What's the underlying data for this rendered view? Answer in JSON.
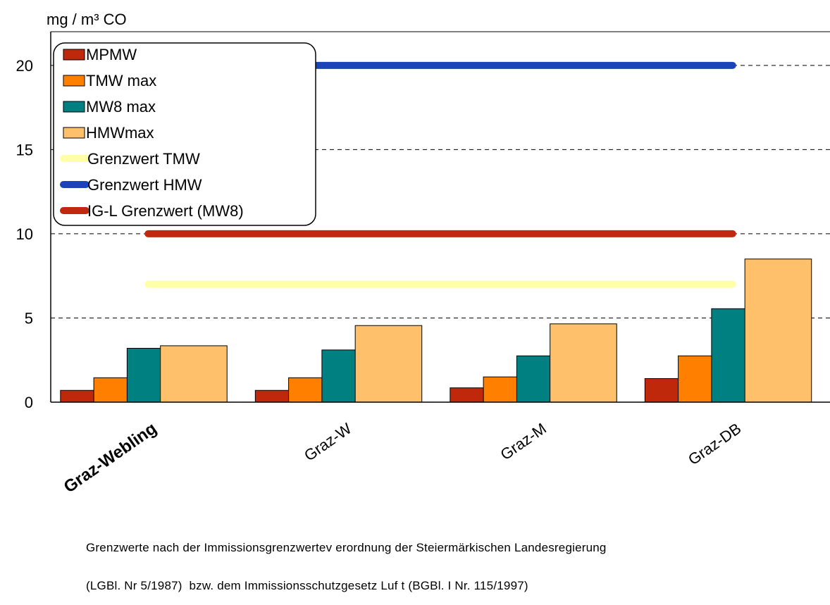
{
  "chart_data": {
    "type": "bar",
    "ylabel": "mg / m³ CO",
    "ylim": [
      0,
      22
    ],
    "yticks": [
      0,
      5,
      10,
      15,
      20
    ],
    "grid": "dashed horizontal",
    "legend_position": "top-left",
    "categories": [
      "Graz-Webling",
      "Graz-W",
      "Graz-M",
      "Graz-DB"
    ],
    "highlighted_category": "Graz-Webling",
    "series": [
      {
        "name": "MPMW",
        "color": "#c0280c",
        "values": [
          0.7,
          0.7,
          0.85,
          1.4
        ]
      },
      {
        "name": "TMW max",
        "color": "#ff8000",
        "values": [
          1.45,
          1.45,
          1.5,
          2.75
        ]
      },
      {
        "name": "MW8 max",
        "color": "#008080",
        "values": [
          3.2,
          3.1,
          2.75,
          5.55
        ]
      },
      {
        "name": "HMWmax",
        "color": "#ffc06c",
        "values": [
          3.35,
          4.55,
          4.65,
          8.5
        ]
      }
    ],
    "reference_lines": [
      {
        "name": "Grenzwert TMW",
        "color": "#ffffa8",
        "value": 7
      },
      {
        "name": "Grenzwert HMW",
        "color": "#1c44b8",
        "value": 20
      },
      {
        "name": "IG-L Grenzwert (MW8)",
        "color": "#c02810",
        "value": 10
      }
    ]
  },
  "footnote": {
    "line1": "Grenzwerte nach der Immissionsgrenzwertev erordnung der Steiermärkischen Landesregierung",
    "line2": "(LGBl. Nr 5/1987)  bzw. dem Immissionsschutzgesetz Luf t (BGBl. I Nr. 115/1997)"
  }
}
